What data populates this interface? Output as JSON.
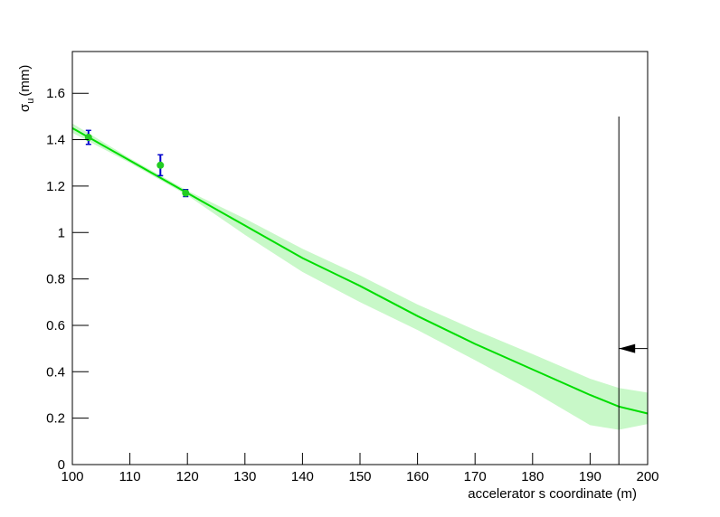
{
  "chart_data": {
    "type": "line",
    "x_label": "accelerator s coordinate (m)",
    "y_label": {
      "symbol": "σ",
      "subscript": "u",
      "unit": "(mm)"
    },
    "xlim": [
      100,
      200
    ],
    "ylim": [
      0,
      1.78
    ],
    "xticks": [
      100,
      110,
      120,
      130,
      140,
      150,
      160,
      170,
      180,
      190,
      200
    ],
    "yticks": [
      0,
      0.2,
      0.4,
      0.6,
      0.8,
      1,
      1.2,
      1.4,
      1.6
    ],
    "fit": {
      "color": "#00dd00",
      "band_color": "#c8f8c8",
      "x": [
        100,
        110,
        120,
        130,
        140,
        150,
        160,
        170,
        180,
        190,
        195,
        200
      ],
      "values": [
        1.45,
        1.31,
        1.17,
        1.03,
        0.89,
        0.77,
        0.64,
        0.52,
        0.41,
        0.3,
        0.25,
        0.22
      ],
      "band_upper": [
        1.47,
        1.32,
        1.18,
        1.06,
        0.93,
        0.815,
        0.69,
        0.58,
        0.476,
        0.37,
        0.33,
        0.31
      ],
      "band_lower": [
        1.43,
        1.3,
        1.16,
        0.99,
        0.83,
        0.7,
        0.58,
        0.45,
        0.316,
        0.17,
        0.15,
        0.175
      ]
    },
    "points": {
      "color": "#22cc22",
      "error_color": "#0000cc",
      "x": [
        102.8,
        115.3,
        119.7
      ],
      "values": [
        1.41,
        1.29,
        1.17
      ],
      "errors": [
        0.03,
        0.045,
        0.015
      ]
    },
    "marker": {
      "x": 195,
      "ymax": 1.5,
      "arrow_y": 0.5
    }
  }
}
